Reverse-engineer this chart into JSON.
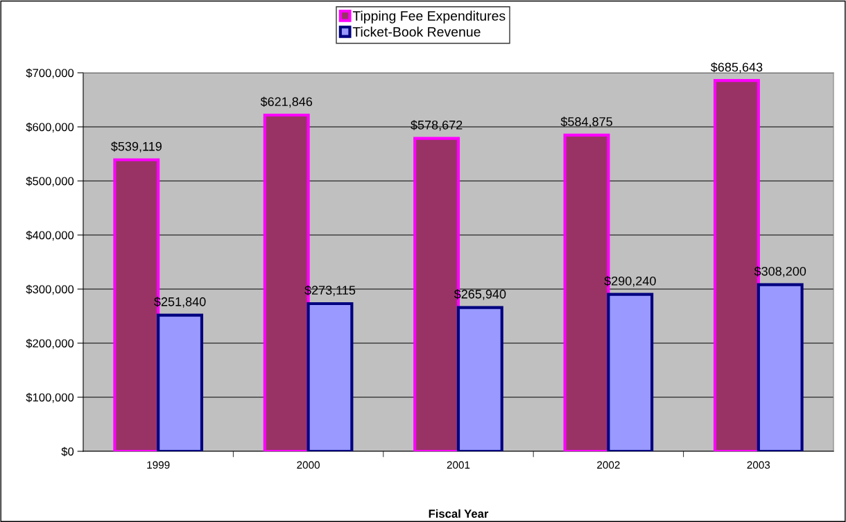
{
  "chart_data": {
    "type": "bar",
    "xlabel": "Fiscal Year",
    "categories": [
      "1999",
      "2000",
      "2001",
      "2002",
      "2003"
    ],
    "series": [
      {
        "name": "Tipping Fee Expenditures",
        "color": "#993366",
        "values": [
          539119,
          621846,
          578672,
          584875,
          685643
        ]
      },
      {
        "name": "Ticket-Book Revenue",
        "color": "#9999ff",
        "values": [
          251840,
          273115,
          265940,
          290240,
          308200
        ]
      }
    ],
    "ylim": [
      0,
      700000
    ],
    "yticks": [
      {
        "value": 0,
        "label": "$0"
      },
      {
        "value": 100000,
        "label": "$100,000"
      },
      {
        "value": 200000,
        "label": "$200,000"
      },
      {
        "value": 300000,
        "label": "$300,000"
      },
      {
        "value": 400000,
        "label": "$400,000"
      },
      {
        "value": 500000,
        "label": "$500,000"
      },
      {
        "value": 600000,
        "label": "$600,000"
      },
      {
        "value": 700000,
        "label": "$700,000"
      }
    ],
    "grid": "y",
    "legend": "top",
    "value_labels": [
      [
        "$539,119",
        "$621,846",
        "$578,672",
        "$584,875",
        "$685,643"
      ],
      [
        "$251,840",
        "$273,115",
        "$265,940",
        "$290,240",
        "$308,200"
      ]
    ]
  }
}
